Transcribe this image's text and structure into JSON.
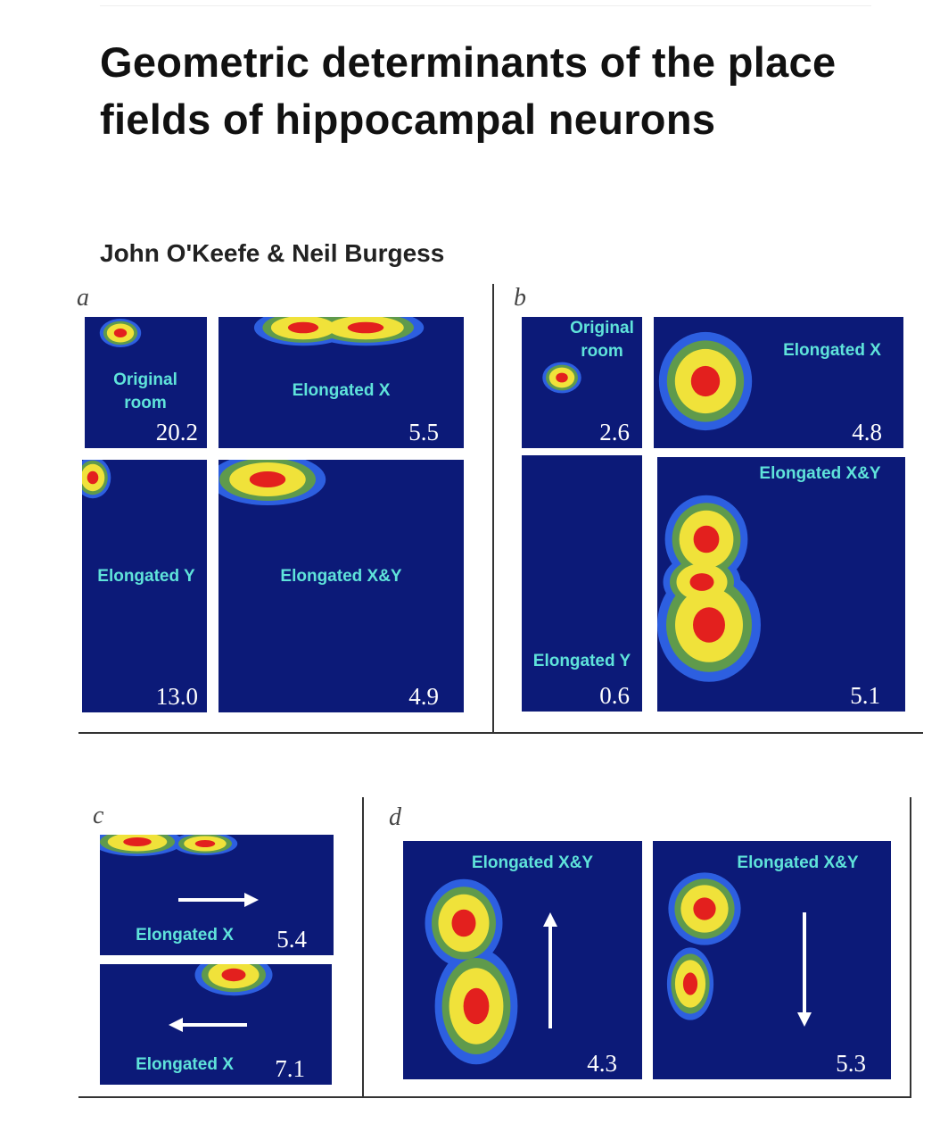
{
  "title": "Geometric determinants of the place fields of hippocampal neurons",
  "authors": "John O'Keefe & Neil Burgess",
  "panels": [
    {
      "label": "a",
      "maps": [
        {
          "label": "Original room",
          "rate": "20.2"
        },
        {
          "label": "Elongated X",
          "rate": "5.5"
        },
        {
          "label": "Elongated Y",
          "rate": "13.0"
        },
        {
          "label": "Elongated X&Y",
          "rate": "4.9"
        }
      ]
    },
    {
      "label": "b",
      "maps": [
        {
          "label": "Original room",
          "rate": "2.6"
        },
        {
          "label": "Elongated X",
          "rate": "4.8"
        },
        {
          "label": "Elongated Y",
          "rate": "0.6"
        },
        {
          "label": "Elongated X&Y",
          "rate": "5.1"
        }
      ]
    },
    {
      "label": "c",
      "maps": [
        {
          "label": "Elongated X",
          "rate": "5.4"
        },
        {
          "label": "Elongated X",
          "rate": "7.1"
        }
      ]
    },
    {
      "label": "d",
      "maps": [
        {
          "label": "Elongated X&Y",
          "rate": "4.3"
        },
        {
          "label": "Elongated X&Y",
          "rate": "5.3"
        }
      ]
    }
  ]
}
